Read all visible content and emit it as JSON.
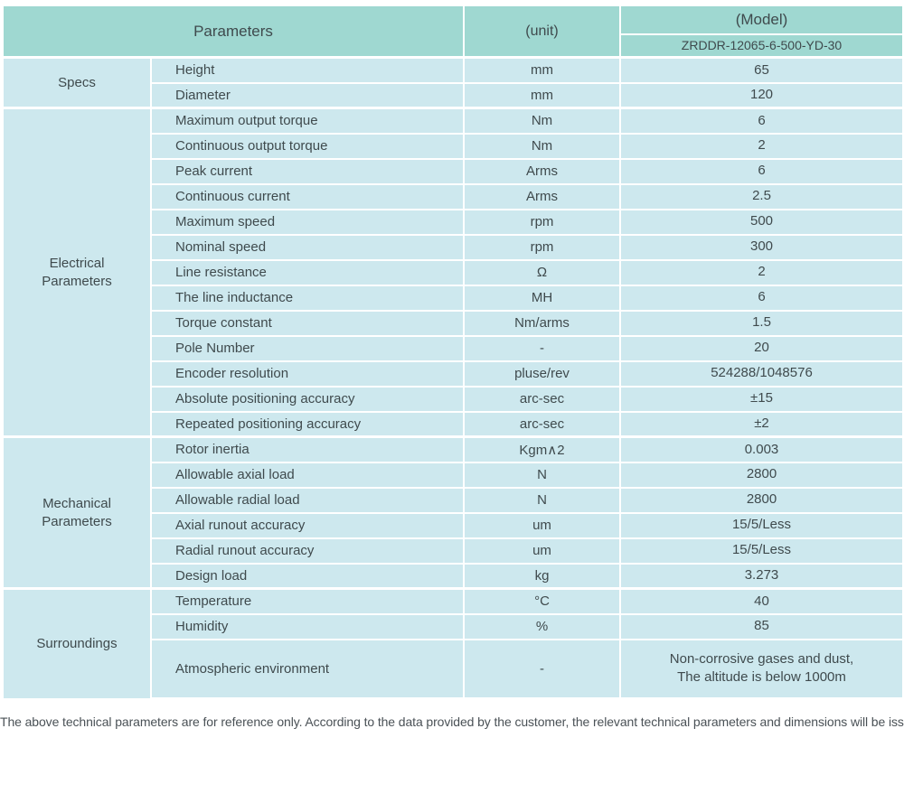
{
  "colors": {
    "header_bg": "#9fd8d1",
    "row_bg": "#cde8ee",
    "border": "#ffffff",
    "text": "#3f4a4d",
    "footer_text": "#4a5156"
  },
  "header": {
    "parameters_label": "Parameters",
    "unit_label": "(unit)",
    "model_label": "(Model)",
    "model_value": "ZRDDR-12065-6-500-YD-30"
  },
  "groups": [
    {
      "name": "Specs",
      "rows": [
        {
          "parameter": "Height",
          "unit": "mm",
          "value": "65"
        },
        {
          "parameter": "Diameter",
          "unit": "mm",
          "value": "120"
        }
      ]
    },
    {
      "name": "Electrical Parameters",
      "rows": [
        {
          "parameter": "Maximum output torque",
          "unit": "Nm",
          "value": "6"
        },
        {
          "parameter": "Continuous output torque",
          "unit": "Nm",
          "value": "2"
        },
        {
          "parameter": "Peak current",
          "unit": "Arms",
          "value": "6"
        },
        {
          "parameter": "Continuous current",
          "unit": "Arms",
          "value": "2.5"
        },
        {
          "parameter": "Maximum speed",
          "unit": "rpm",
          "value": "500"
        },
        {
          "parameter": "Nominal speed",
          "unit": "rpm",
          "value": "300"
        },
        {
          "parameter": "Line resistance",
          "unit": "Ω",
          "value": "2"
        },
        {
          "parameter": "The line inductance",
          "unit": "MH",
          "value": "6"
        },
        {
          "parameter": "Torque constant",
          "unit": "Nm/arms",
          "value": "1.5"
        },
        {
          "parameter": "Pole Number",
          "unit": "-",
          "value": "20"
        },
        {
          "parameter": "Encoder resolution",
          "unit": "pluse/rev",
          "value": "524288/1048576"
        },
        {
          "parameter": "Absolute positioning accuracy",
          "unit": "arc-sec",
          "value": "±15"
        },
        {
          "parameter": "Repeated positioning accuracy",
          "unit": "arc-sec",
          "value": "±2"
        }
      ]
    },
    {
      "name": "Mechanical Parameters",
      "rows": [
        {
          "parameter": "Rotor inertia",
          "unit": "Kgm∧2",
          "value": "0.003"
        },
        {
          "parameter": "Allowable axial load",
          "unit": "N",
          "value": "2800"
        },
        {
          "parameter": "Allowable radial load",
          "unit": "N",
          "value": "2800"
        },
        {
          "parameter": "Axial runout accuracy",
          "unit": "um",
          "value": "15/5/Less"
        },
        {
          "parameter": "Radial runout accuracy",
          "unit": "um",
          "value": "15/5/Less"
        },
        {
          "parameter": "Design load",
          "unit": "kg",
          "value": "3.273"
        }
      ]
    },
    {
      "name": "Surroundings",
      "rows": [
        {
          "parameter": "Temperature",
          "unit": "°C",
          "value": "40"
        },
        {
          "parameter": "Humidity",
          "unit": "%",
          "value": "85"
        },
        {
          "parameter": "Atmospheric environment",
          "unit": "-",
          "value": "Non-corrosive gases and dust,\nThe altitude is below 1000m"
        }
      ]
    }
  ],
  "footer": {
    "note": "The above technical parameters are for reference only. According to the data provided by the customer, the relevant technical parameters and dimensions will be issued."
  }
}
